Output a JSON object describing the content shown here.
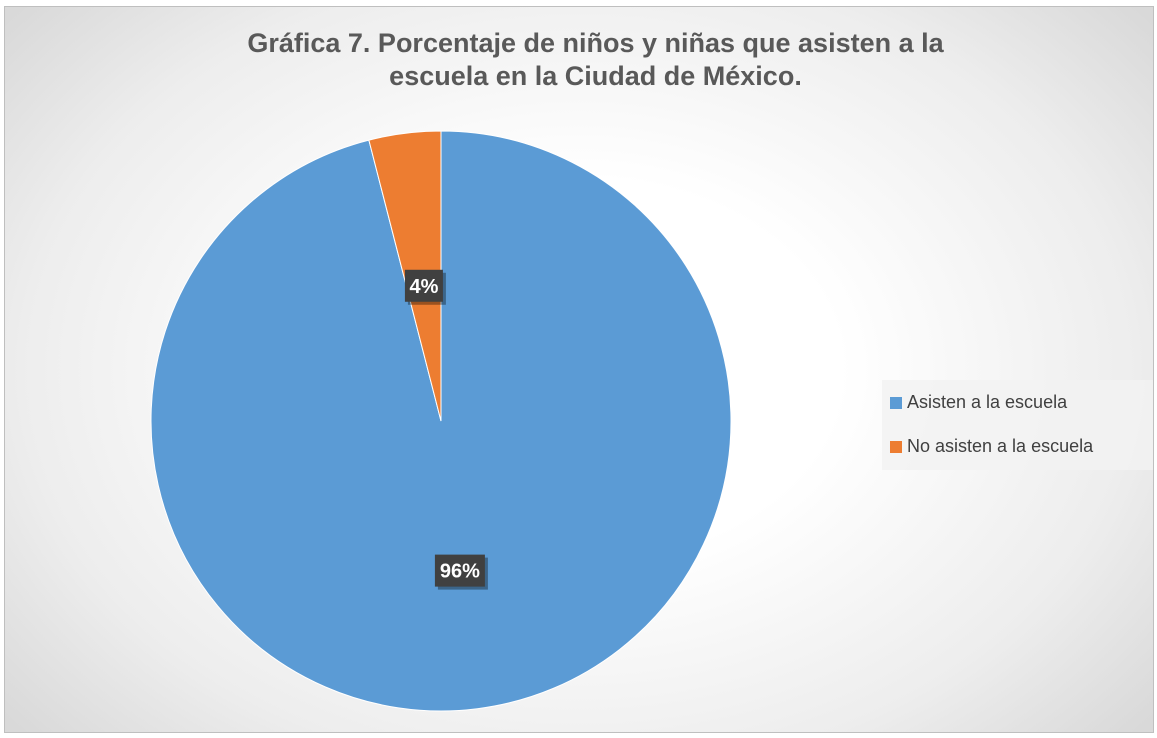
{
  "chart_data": {
    "type": "pie",
    "title": "Gráfica 7. Porcentaje de niños y niñas que asisten a la\nescuela en la Ciudad de México.",
    "categories": [
      "Asisten a la escuela",
      "No asisten a la escuela"
    ],
    "values": [
      96,
      4
    ],
    "data_labels": [
      "96%",
      "4%"
    ],
    "colors": [
      "#5B9BD5",
      "#ED7D31"
    ],
    "legend_position": "right"
  }
}
